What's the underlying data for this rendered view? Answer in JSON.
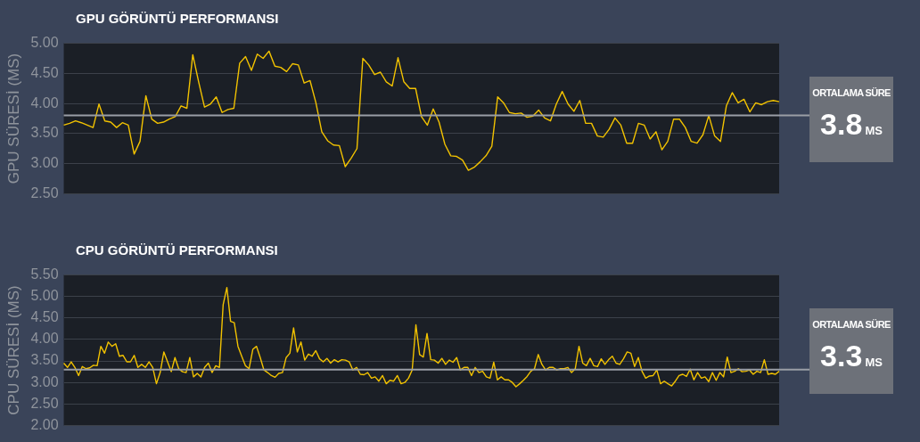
{
  "chart_data": [
    {
      "type": "line",
      "title": "GPU GÖRÜNTÜ PERFORMANSI",
      "ylabel": "GPU SÜRESİ (MS)",
      "grid": "y",
      "tick_labels": "y",
      "marker": "none",
      "ylim": [
        2.5,
        5
      ],
      "yticks": [
        {
          "value": 2.5,
          "label": "2.50"
        },
        {
          "value": 3,
          "label": "3.00"
        },
        {
          "value": 3.5,
          "label": "3.50"
        },
        {
          "value": 4,
          "label": "4.00"
        },
        {
          "value": 4.5,
          "label": "4.50"
        },
        {
          "value": 5,
          "label": "5.00"
        }
      ],
      "categories": [
        null,
        null,
        null,
        null,
        null,
        null,
        null,
        null,
        null,
        null,
        null,
        null,
        null,
        null,
        null,
        null,
        null,
        null,
        null,
        null,
        null,
        null,
        null,
        null,
        null,
        null,
        null,
        null,
        null,
        null,
        null,
        null,
        null,
        null,
        null,
        null,
        null,
        null,
        null,
        null,
        null,
        null,
        null,
        null,
        null,
        null,
        null,
        null,
        null,
        null,
        null,
        null,
        null,
        null,
        null,
        null,
        null,
        null,
        null,
        null,
        null,
        null,
        null,
        null,
        null,
        null,
        null,
        null,
        null,
        null,
        null,
        null,
        null,
        null,
        null,
        null,
        null,
        null,
        null,
        null,
        null,
        null,
        null,
        null,
        null,
        null,
        null,
        null,
        null,
        null,
        null,
        null,
        null,
        null,
        null,
        null,
        null,
        null,
        null,
        null,
        null,
        null,
        null,
        null,
        null,
        null,
        null,
        null,
        null,
        null,
        null,
        null,
        null,
        null,
        null,
        null,
        null,
        null,
        null,
        null,
        null,
        null,
        null
      ],
      "series": [
        {
          "color": "#f2c200",
          "values": [
            3.64,
            3.67,
            3.71,
            3.68,
            3.64,
            3.6,
            3.99,
            3.71,
            3.69,
            3.6,
            3.68,
            3.64,
            3.16,
            3.37,
            4.13,
            3.74,
            3.67,
            3.69,
            3.74,
            3.78,
            3.96,
            3.92,
            4.81,
            4.36,
            3.94,
            3.99,
            4.11,
            3.85,
            3.9,
            3.92,
            4.67,
            4.78,
            4.55,
            4.82,
            4.75,
            4.87,
            4.62,
            4.6,
            4.53,
            4.66,
            4.64,
            4.34,
            4.38,
            4.01,
            3.53,
            3.38,
            3.31,
            3.3,
            2.95,
            3.09,
            3.25,
            4.75,
            4.64,
            4.48,
            4.52,
            4.36,
            4.29,
            4.76,
            4.36,
            4.25,
            4.25,
            3.78,
            3.64,
            3.91,
            3.69,
            3.32,
            3.13,
            3.12,
            3.06,
            2.89,
            2.94,
            3.03,
            3.13,
            3.29,
            4.11,
            4.01,
            3.85,
            3.83,
            3.84,
            3.77,
            3.79,
            3.89,
            3.76,
            3.71,
            3.99,
            4.2,
            3.99,
            3.87,
            4.05,
            3.67,
            3.67,
            3.46,
            3.44,
            3.57,
            3.76,
            3.64,
            3.34,
            3.34,
            3.67,
            3.64,
            3.41,
            3.53,
            3.23,
            3.37,
            3.74,
            3.74,
            3.6,
            3.37,
            3.34,
            3.48,
            3.8,
            3.46,
            3.37,
            3.96,
            4.18,
            4.01,
            4.07,
            3.86,
            4.01,
            3.98,
            4.03,
            4.05,
            4.03
          ]
        }
      ],
      "ref_lines": [
        {
          "axis": "y",
          "value": 3.8,
          "color": "#9a9ea6"
        }
      ],
      "annotations": [
        "ORTALAMA SÜRE",
        "3.8",
        "MS"
      ]
    },
    {
      "type": "line",
      "title": "CPU GÖRÜNTÜ PERFORMANSI",
      "ylabel": "CPU SÜRESİ (MS)",
      "grid": "y",
      "tick_labels": "y",
      "marker": "none",
      "ylim": [
        2,
        5.5
      ],
      "yticks": [
        {
          "value": 2,
          "label": "2.00"
        },
        {
          "value": 2.5,
          "label": "2.50"
        },
        {
          "value": 3,
          "label": "3.00"
        },
        {
          "value": 3.5,
          "label": "3.50"
        },
        {
          "value": 4,
          "label": "4.00"
        },
        {
          "value": 4.5,
          "label": "4.50"
        },
        {
          "value": 5,
          "label": "5.00"
        },
        {
          "value": 5.5,
          "label": "5.50"
        }
      ],
      "categories": [
        null,
        null,
        null,
        null,
        null,
        null,
        null,
        null,
        null,
        null,
        null,
        null,
        null,
        null,
        null,
        null,
        null,
        null,
        null,
        null,
        null,
        null,
        null,
        null,
        null,
        null,
        null,
        null,
        null,
        null,
        null,
        null,
        null,
        null,
        null,
        null,
        null,
        null,
        null,
        null,
        null,
        null,
        null,
        null,
        null,
        null,
        null,
        null,
        null,
        null,
        null,
        null,
        null,
        null,
        null,
        null,
        null,
        null,
        null,
        null,
        null,
        null,
        null,
        null,
        null,
        null,
        null,
        null,
        null,
        null,
        null,
        null,
        null,
        null,
        null,
        null,
        null,
        null,
        null,
        null,
        null,
        null,
        null,
        null,
        null,
        null,
        null,
        null,
        null,
        null,
        null,
        null,
        null,
        null,
        null,
        null,
        null,
        null,
        null,
        null,
        null,
        null,
        null,
        null,
        null,
        null,
        null,
        null,
        null,
        null,
        null,
        null,
        null,
        null,
        null,
        null,
        null,
        null,
        null,
        null,
        null,
        null,
        null,
        null,
        null,
        null,
        null,
        null,
        null,
        null,
        null,
        null,
        null,
        null,
        null,
        null,
        null,
        null,
        null,
        null,
        null,
        null,
        null,
        null,
        null,
        null,
        null,
        null,
        null,
        null,
        null,
        null,
        null,
        null,
        null,
        null,
        null,
        null,
        null,
        null,
        null,
        null,
        null,
        null,
        null,
        null,
        null,
        null,
        null,
        null,
        null,
        null,
        null,
        null,
        null,
        null,
        null,
        null,
        null,
        null,
        null,
        null,
        null,
        null,
        null,
        null,
        null,
        null,
        null,
        null,
        null,
        null,
        null,
        null
      ],
      "series": [
        {
          "color": "#f2c200",
          "values": [
            3.45,
            3.35,
            3.48,
            3.35,
            3.16,
            3.37,
            3.32,
            3.34,
            3.4,
            3.39,
            3.84,
            3.68,
            3.94,
            3.84,
            3.9,
            3.61,
            3.63,
            3.48,
            3.48,
            3.63,
            3.35,
            3.42,
            3.35,
            3.48,
            3.35,
            2.97,
            3.23,
            3.71,
            3.48,
            3.25,
            3.58,
            3.32,
            3.25,
            3.23,
            3.58,
            3.13,
            3.21,
            3.13,
            3.35,
            3.45,
            3.23,
            3.39,
            3.35,
            4.81,
            5.21,
            4.42,
            4.39,
            3.84,
            3.61,
            3.39,
            3.32,
            3.77,
            3.84,
            3.58,
            3.29,
            3.23,
            3.16,
            3.12,
            3.21,
            3.23,
            3.58,
            3.68,
            4.27,
            3.71,
            3.94,
            3.52,
            3.66,
            3.61,
            3.74,
            3.55,
            3.48,
            3.56,
            3.45,
            3.53,
            3.48,
            3.53,
            3.52,
            3.48,
            3.29,
            3.35,
            3.19,
            3.18,
            3.23,
            3.1,
            3.13,
            3.03,
            3.16,
            2.97,
            3.05,
            3.03,
            3.16,
            2.97,
            3.0,
            3.1,
            3.29,
            4.34,
            3.65,
            3.59,
            4.14,
            3.53,
            3.52,
            3.45,
            3.56,
            3.42,
            3.52,
            3.47,
            3.58,
            3.29,
            3.35,
            3.35,
            3.16,
            3.35,
            3.23,
            3.26,
            3.13,
            3.1,
            3.47,
            3.06,
            3.13,
            3.06,
            3.06,
            3.0,
            2.9,
            2.97,
            3.05,
            3.14,
            3.26,
            3.32,
            3.65,
            3.42,
            3.29,
            3.35,
            3.35,
            3.29,
            3.32,
            3.32,
            3.35,
            3.23,
            3.32,
            3.84,
            3.45,
            3.39,
            3.56,
            3.39,
            3.37,
            3.55,
            3.42,
            3.53,
            3.61,
            3.45,
            3.42,
            3.55,
            3.71,
            3.68,
            3.37,
            3.58,
            3.26,
            3.1,
            3.15,
            3.16,
            3.29,
            2.97,
            3.03,
            2.97,
            2.92,
            3.03,
            3.16,
            3.19,
            3.14,
            3.31,
            3.06,
            3.23,
            3.1,
            3.13,
            3.02,
            3.23,
            3.05,
            3.23,
            3.13,
            3.59,
            3.23,
            3.26,
            3.32,
            3.25,
            3.26,
            3.29,
            3.19,
            3.26,
            3.23,
            3.53,
            3.19,
            3.21,
            3.19,
            3.26
          ]
        }
      ],
      "ref_lines": [
        {
          "axis": "y",
          "value": 3.3,
          "color": "#9a9ea6"
        }
      ],
      "annotations": [
        "ORTALAMA SÜRE",
        "3.3",
        "MS"
      ]
    }
  ]
}
